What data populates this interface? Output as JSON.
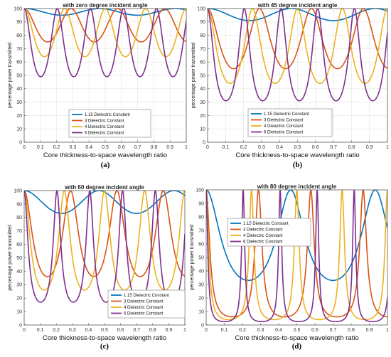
{
  "colors": [
    "#0072BD",
    "#D95319",
    "#EDB120",
    "#7E2F8E"
  ],
  "chart_data": [
    {
      "type": "line",
      "panel_label": "(a)",
      "title": "with zero degree incident angle",
      "xlabel": "Core thickness-to-space wavelength ratio",
      "ylabel": "percentage power transmitted",
      "xlim": [
        0,
        1
      ],
      "ylim": [
        0,
        100
      ],
      "xticks": [
        "0",
        "0.1",
        "0.2",
        "0.3",
        "0.4",
        "0.5",
        "0.6",
        "0.7",
        "0.8",
        "0.9",
        "1"
      ],
      "yticks": [
        "0",
        "10",
        "20",
        "30",
        "40",
        "50",
        "60",
        "70",
        "80",
        "90",
        "100"
      ],
      "grid": true,
      "legend_position": "lower-left",
      "series": [
        {
          "name": "1.15 Dielectric Constant",
          "eps": 1.15,
          "min_percent": 95
        },
        {
          "name": "3 Dielectric Constant",
          "eps": 3,
          "min_percent": 75
        },
        {
          "name": "4 Dielectric Constant",
          "eps": 4,
          "min_percent": 64
        },
        {
          "name": "6 Dielectric Constant",
          "eps": 6,
          "min_percent": 49
        }
      ]
    },
    {
      "type": "line",
      "panel_label": "(b)",
      "title": "with 45 degree incident angle",
      "xlabel": "Core thickness-to-space wavelength ratio",
      "ylabel": "percentage power transmitted",
      "xlim": [
        0,
        1
      ],
      "ylim": [
        0,
        100
      ],
      "xticks": [
        "0",
        "0.1",
        "0.2",
        "0.3",
        "0.4",
        "0.5",
        "0.6",
        "0.7",
        "0.8",
        "0.9",
        "1"
      ],
      "yticks": [
        "0",
        "10",
        "20",
        "30",
        "40",
        "50",
        "60",
        "70",
        "80",
        "90",
        "100"
      ],
      "grid": true,
      "legend_position": "lower-left",
      "series": [
        {
          "name": "1.15 Dielectric Constant",
          "eps": 1.15,
          "min_percent": 91
        },
        {
          "name": "3 Dielectric Constant",
          "eps": 3,
          "min_percent": 55
        },
        {
          "name": "4 Dielectric Constant",
          "eps": 4,
          "min_percent": 44
        },
        {
          "name": "6 Dielectric Constant",
          "eps": 6,
          "min_percent": 31
        }
      ]
    },
    {
      "type": "line",
      "panel_label": "(c)",
      "title": "with 60 degree incident angle",
      "xlabel": "Core thickness-to-space wavelength ratio",
      "ylabel": "percentage power transmitted",
      "xlim": [
        0,
        1
      ],
      "ylim": [
        0,
        100
      ],
      "xticks": [
        "0",
        "0.1",
        "0.2",
        "0.3",
        "0.4",
        "0.5",
        "0.6",
        "0.7",
        "0.8",
        "0.9",
        "1"
      ],
      "yticks": [
        "0",
        "10",
        "20",
        "30",
        "40",
        "50",
        "60",
        "70",
        "80",
        "90",
        "100"
      ],
      "grid": false,
      "legend_position": "lower-right",
      "series": [
        {
          "name": "1.15 Dielectric Constant",
          "eps": 1.15,
          "min_percent": 83
        },
        {
          "name": "3 Dielectric Constant",
          "eps": 3,
          "min_percent": 36
        },
        {
          "name": "4 Dielectric Constant",
          "eps": 4,
          "min_percent": 26
        },
        {
          "name": "6 Dielectric Constant",
          "eps": 6,
          "min_percent": 17
        }
      ]
    },
    {
      "type": "line",
      "panel_label": "(d)",
      "title": "with 80 degree incident angle",
      "xlabel": "Core thickness-to-space wavelength ratio",
      "ylabel": "percentage power transmitted",
      "xlim": [
        0,
        1
      ],
      "ylim": [
        0,
        100
      ],
      "xticks": [
        "0",
        "0.1",
        "0.2",
        "0.3",
        "0.4",
        "0.5",
        "0.6",
        "0.7",
        "0.8",
        "0.9",
        "1"
      ],
      "yticks": [
        "0",
        "10",
        "20",
        "30",
        "40",
        "50",
        "60",
        "70",
        "80",
        "90",
        "100"
      ],
      "grid": false,
      "legend_position": "upper-left",
      "series": [
        {
          "name": "1.15 Dielectric Constant",
          "eps": 1.15,
          "min_percent": 33
        },
        {
          "name": "3 Dielectric Constant",
          "eps": 3,
          "min_percent": 6
        },
        {
          "name": "4 Dielectric Constant",
          "eps": 4,
          "min_percent": 4
        },
        {
          "name": "6 Dielectric Constant",
          "eps": 6,
          "min_percent": 2.5
        }
      ]
    }
  ]
}
